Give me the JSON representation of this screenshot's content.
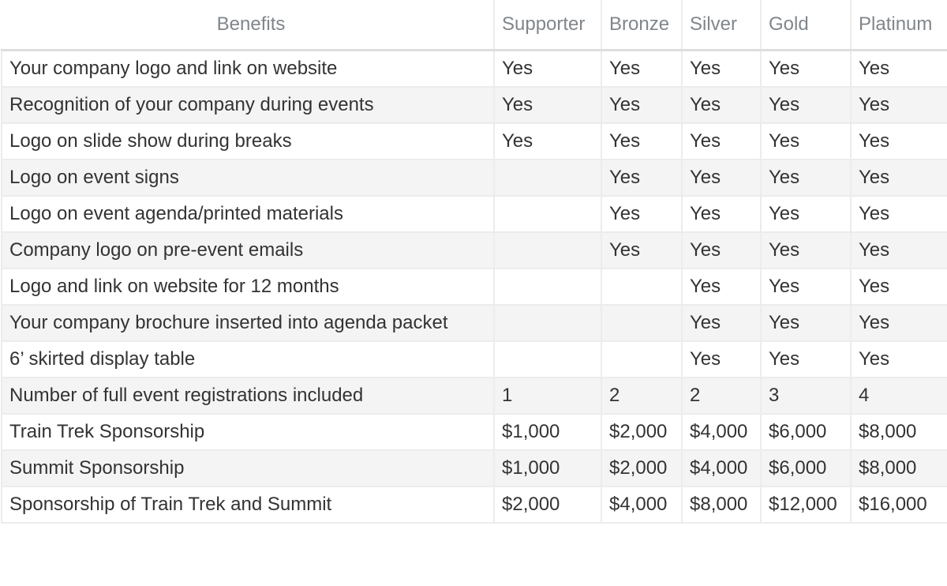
{
  "headers": [
    "Benefits",
    "Supporter",
    "Bronze",
    "Silver",
    "Gold",
    "Platinum"
  ],
  "rows": [
    [
      "Your company logo and link on website",
      "Yes",
      "Yes",
      "Yes",
      "Yes",
      "Yes"
    ],
    [
      "Recognition of your company during events",
      "Yes",
      "Yes",
      "Yes",
      "Yes",
      "Yes"
    ],
    [
      "Logo on slide show during breaks",
      "Yes",
      "Yes",
      "Yes",
      "Yes",
      "Yes"
    ],
    [
      "Logo on event signs",
      "",
      "Yes",
      "Yes",
      "Yes",
      "Yes"
    ],
    [
      "Logo on event agenda/printed materials",
      "",
      "Yes",
      "Yes",
      "Yes",
      "Yes"
    ],
    [
      "Company logo on pre-event emails",
      "",
      "Yes",
      "Yes",
      "Yes",
      "Yes"
    ],
    [
      "Logo and link on website for 12 months",
      "",
      "",
      "Yes",
      "Yes",
      "Yes"
    ],
    [
      "Your company brochure inserted into agenda packet",
      "",
      "",
      "Yes",
      "Yes",
      "Yes"
    ],
    [
      "6’ skirted display table",
      "",
      "",
      "Yes",
      "Yes",
      "Yes"
    ],
    [
      "Number of full event registrations included",
      "1",
      "2",
      "2",
      "3",
      "4"
    ],
    [
      "Train Trek Sponsorship",
      "$1,000",
      "$2,000",
      "$4,000",
      "$6,000",
      "$8,000"
    ],
    [
      "Summit Sponsorship",
      "$1,000",
      "$2,000",
      "$4,000",
      "$6,000",
      "$8,000"
    ],
    [
      "Sponsorship of Train Trek and Summit",
      "$2,000",
      "$4,000",
      "$8,000",
      "$12,000",
      "$16,000"
    ]
  ]
}
